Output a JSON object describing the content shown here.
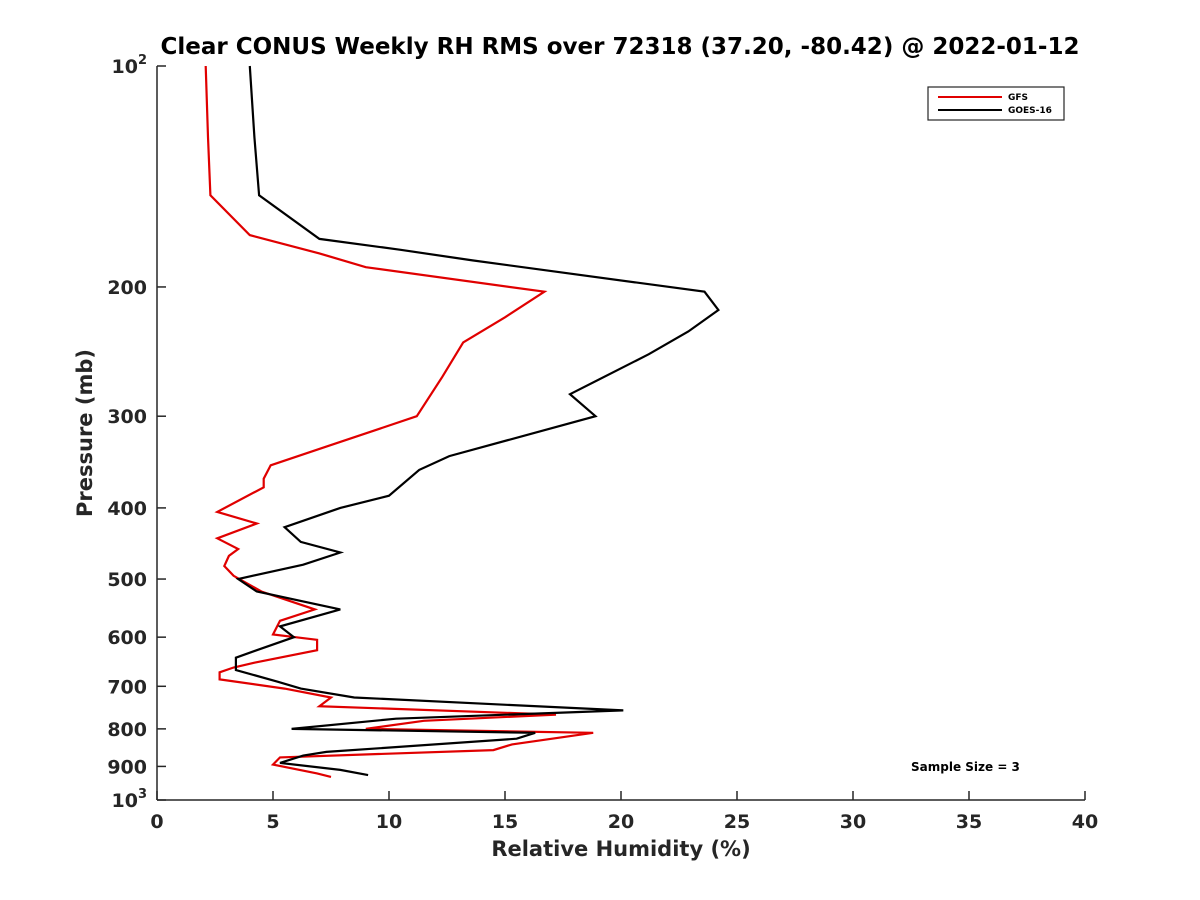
{
  "chart_data": {
    "type": "line",
    "title": "Clear CONUS Weekly RH RMS over 72318 (37.20, -80.42) @ 2022-01-12",
    "xlabel": "Relative Humidity (%)",
    "ylabel": "Pressure (mb)",
    "xlim": [
      0,
      40
    ],
    "ylim": [
      100,
      1000
    ],
    "y_scale": "log",
    "y_direction": "reversed",
    "x_ticks": [
      "0",
      "5",
      "10",
      "15",
      "20",
      "25",
      "30",
      "35",
      "40"
    ],
    "y_ticks": [
      {
        "value": 100,
        "base": "10",
        "exp": "2"
      },
      {
        "value": 200,
        "label": "200"
      },
      {
        "value": 300,
        "label": "300"
      },
      {
        "value": 400,
        "label": "400"
      },
      {
        "value": 500,
        "label": "500"
      },
      {
        "value": 600,
        "label": "600"
      },
      {
        "value": 700,
        "label": "700"
      },
      {
        "value": 800,
        "label": "800"
      },
      {
        "value": 900,
        "label": "900"
      },
      {
        "value": 1000,
        "base": "10",
        "exp": "3"
      }
    ],
    "grid": false,
    "legend_position": "top-right",
    "annotation": "Sample Size = 3",
    "series": [
      {
        "name": "GFS",
        "color": "#e00000",
        "points": [
          [
            2.1,
            100
          ],
          [
            2.2,
            125
          ],
          [
            2.3,
            150
          ],
          [
            4.0,
            170
          ],
          [
            7.0,
            180
          ],
          [
            9.0,
            188
          ],
          [
            16.7,
            203
          ],
          [
            15.0,
            220
          ],
          [
            13.2,
            238
          ],
          [
            12.3,
            265
          ],
          [
            11.2,
            300
          ],
          [
            7.3,
            330
          ],
          [
            4.9,
            350
          ],
          [
            4.6,
            365
          ],
          [
            4.6,
            375
          ],
          [
            2.6,
            405
          ],
          [
            4.3,
            420
          ],
          [
            2.6,
            440
          ],
          [
            3.5,
            455
          ],
          [
            3.1,
            465
          ],
          [
            2.9,
            480
          ],
          [
            3.3,
            495
          ],
          [
            4.5,
            520
          ],
          [
            6.8,
            550
          ],
          [
            5.3,
            570
          ],
          [
            5.0,
            595
          ],
          [
            6.9,
            605
          ],
          [
            6.9,
            625
          ],
          [
            4.2,
            650
          ],
          [
            3.3,
            660
          ],
          [
            2.7,
            670
          ],
          [
            2.7,
            685
          ],
          [
            5.5,
            705
          ],
          [
            7.5,
            725
          ],
          [
            7.0,
            745
          ],
          [
            17.2,
            765
          ],
          [
            11.5,
            780
          ],
          [
            9.0,
            800
          ],
          [
            18.8,
            810
          ],
          [
            15.3,
            840
          ],
          [
            14.5,
            855
          ],
          [
            5.3,
            875
          ],
          [
            5.0,
            895
          ],
          [
            6.9,
            920
          ],
          [
            7.5,
            930
          ]
        ]
      },
      {
        "name": "GOES-16",
        "color": "#000000",
        "points": [
          [
            4.0,
            100
          ],
          [
            4.2,
            125
          ],
          [
            4.4,
            150
          ],
          [
            7.0,
            172
          ],
          [
            10.5,
            178
          ],
          [
            13.6,
            184
          ],
          [
            23.6,
            203
          ],
          [
            24.2,
            215
          ],
          [
            22.9,
            230
          ],
          [
            21.2,
            247
          ],
          [
            17.8,
            280
          ],
          [
            18.9,
            300
          ],
          [
            12.6,
            340
          ],
          [
            11.3,
            355
          ],
          [
            10.0,
            385
          ],
          [
            7.9,
            400
          ],
          [
            5.5,
            425
          ],
          [
            6.2,
            445
          ],
          [
            7.9,
            460
          ],
          [
            6.3,
            478
          ],
          [
            3.5,
            500
          ],
          [
            4.3,
            520
          ],
          [
            7.9,
            550
          ],
          [
            5.3,
            580
          ],
          [
            5.9,
            600
          ],
          [
            4.3,
            625
          ],
          [
            3.4,
            640
          ],
          [
            3.4,
            665
          ],
          [
            5.2,
            690
          ],
          [
            6.2,
            705
          ],
          [
            8.5,
            725
          ],
          [
            20.1,
            755
          ],
          [
            10.3,
            775
          ],
          [
            5.8,
            800
          ],
          [
            16.3,
            810
          ],
          [
            15.5,
            825
          ],
          [
            7.3,
            860
          ],
          [
            6.3,
            870
          ],
          [
            5.3,
            890
          ],
          [
            7.9,
            910
          ],
          [
            9.1,
            925
          ]
        ]
      }
    ]
  }
}
